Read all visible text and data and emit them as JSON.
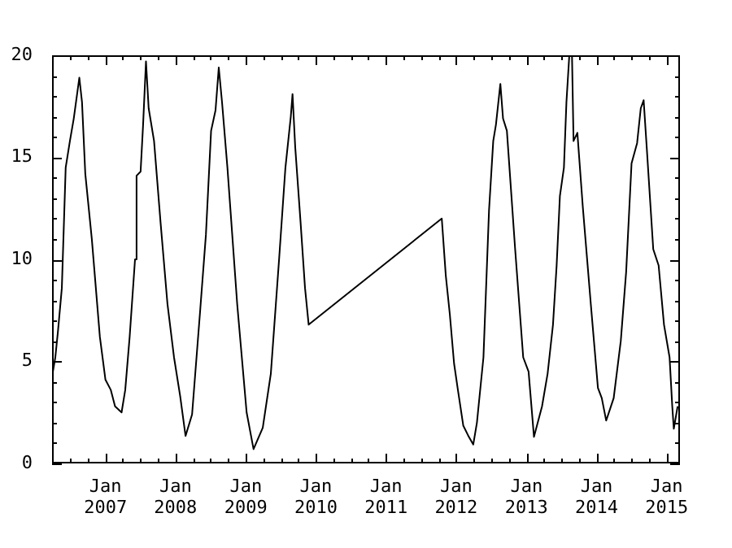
{
  "chart_data": {
    "type": "line",
    "marker": "none",
    "line_style": "solid",
    "legend": false,
    "grid": false,
    "x": [
      "2006-03-29",
      "2006-04-15",
      "2006-04-29",
      "2006-05-19",
      "2006-06-08",
      "2006-06-30",
      "2006-07-20",
      "2006-08-18",
      "2006-09-01",
      "2006-09-18",
      "2006-10-22",
      "2006-12-03",
      "2007-01-01",
      "2007-01-29",
      "2007-02-20",
      "2007-03-26",
      "2007-04-14",
      "2007-05-07",
      "2007-06-04",
      "2007-06-12",
      "2007-07-03",
      "2007-07-16",
      "2007-07-31",
      "2007-08-14",
      "2007-09-11",
      "2007-10-15",
      "2007-11-20",
      "2007-12-24",
      "2008-01-25",
      "2008-02-22",
      "2008-03-27",
      "2008-05-09",
      "2008-06-07",
      "2008-07-04",
      "2008-07-27",
      "2008-08-13",
      "2008-08-30",
      "2008-09-27",
      "2008-11-17",
      "2009-01-05",
      "2009-02-10",
      "2009-03-30",
      "2009-05-11",
      "2009-06-23",
      "2009-07-26",
      "2009-08-23",
      "2009-09-01",
      "2009-09-15",
      "2009-10-13",
      "2009-11-05",
      "2009-11-24",
      "2011-10-18",
      "2011-11-08",
      "2011-11-29",
      "2011-12-21",
      "2012-01-10",
      "2012-02-07",
      "2012-03-07",
      "2012-03-30",
      "2012-04-18",
      "2012-05-22",
      "2012-06-20",
      "2012-07-12",
      "2012-07-26",
      "2012-08-18",
      "2012-09-01",
      "2012-09-21",
      "2012-11-03",
      "2012-12-15",
      "2013-01-12",
      "2013-02-09",
      "2013-03-23",
      "2013-04-21",
      "2013-05-19",
      "2013-06-07",
      "2013-06-24",
      "2013-07-15",
      "2013-07-28",
      "2013-08-12",
      "2013-08-26",
      "2013-09-03",
      "2013-09-23",
      "2013-10-21",
      "2013-12-02",
      "2014-01-08",
      "2014-01-28",
      "2014-02-20",
      "2014-03-31",
      "2014-05-07",
      "2014-06-04",
      "2014-07-02",
      "2014-07-31",
      "2014-08-19",
      "2014-09-03",
      "2014-09-19",
      "2014-10-23",
      "2014-11-20",
      "2014-12-18",
      "2015-01-16",
      "2015-01-30",
      "2015-02-07",
      "2015-02-27"
    ],
    "series": [
      {
        "color": "#000000",
        "values": [
          4.25,
          5.2,
          6.5,
          8.6,
          14.5,
          15.8,
          16.9,
          18.9,
          17.7,
          14.2,
          11.0,
          6.2,
          4.1,
          3.6,
          2.8,
          2.5,
          3.6,
          6.2,
          10.0,
          14.1,
          14.3,
          16.6,
          19.7,
          17.4,
          15.8,
          11.8,
          7.8,
          5.2,
          3.3,
          1.35,
          2.4,
          7.6,
          11.2,
          16.3,
          17.3,
          19.4,
          17.7,
          14.5,
          7.8,
          2.5,
          0.7,
          1.75,
          4.4,
          10.0,
          14.5,
          17.0,
          18.1,
          15.5,
          11.8,
          8.6,
          6.8,
          12.0,
          9.2,
          7.3,
          4.9,
          3.6,
          1.85,
          1.3,
          0.93,
          2.0,
          5.2,
          12.4,
          15.8,
          16.6,
          18.6,
          16.9,
          16.3,
          10.5,
          5.2,
          4.5,
          1.3,
          2.8,
          4.4,
          6.8,
          9.7,
          13.1,
          14.5,
          17.7,
          20.0,
          20.0,
          15.8,
          16.2,
          12.6,
          7.8,
          3.7,
          3.2,
          2.1,
          3.2,
          6.0,
          9.4,
          14.7,
          15.7,
          17.4,
          17.8,
          15.5,
          10.5,
          9.7,
          6.8,
          5.2,
          2.8,
          1.7,
          2.8
        ]
      }
    ],
    "xlim": [
      "2006-03-29",
      "2015-03-11"
    ],
    "xticks": [
      {
        "value": "2006-04-01",
        "label": null
      },
      {
        "value": "2006-07-01",
        "label": null
      },
      {
        "value": "2006-10-01",
        "label": null
      },
      {
        "value": "2007-01-01",
        "label": "Jan 2007"
      },
      {
        "value": "2007-04-01",
        "label": null
      },
      {
        "value": "2007-07-01",
        "label": null
      },
      {
        "value": "2007-10-01",
        "label": null
      },
      {
        "value": "2008-01-01",
        "label": "Jan 2008"
      },
      {
        "value": "2008-04-01",
        "label": null
      },
      {
        "value": "2008-07-01",
        "label": null
      },
      {
        "value": "2008-10-01",
        "label": null
      },
      {
        "value": "2009-01-01",
        "label": "Jan 2009"
      },
      {
        "value": "2009-04-01",
        "label": null
      },
      {
        "value": "2009-07-01",
        "label": null
      },
      {
        "value": "2009-10-01",
        "label": null
      },
      {
        "value": "2010-01-01",
        "label": "Jan 2010"
      },
      {
        "value": "2010-04-01",
        "label": null
      },
      {
        "value": "2010-07-01",
        "label": null
      },
      {
        "value": "2010-10-01",
        "label": null
      },
      {
        "value": "2011-01-01",
        "label": "Jan 2011"
      },
      {
        "value": "2011-04-01",
        "label": null
      },
      {
        "value": "2011-07-01",
        "label": null
      },
      {
        "value": "2011-10-01",
        "label": null
      },
      {
        "value": "2012-01-01",
        "label": "Jan 2012"
      },
      {
        "value": "2012-04-01",
        "label": null
      },
      {
        "value": "2012-07-01",
        "label": null
      },
      {
        "value": "2012-10-01",
        "label": null
      },
      {
        "value": "2013-01-01",
        "label": "Jan 2013"
      },
      {
        "value": "2013-04-01",
        "label": null
      },
      {
        "value": "2013-07-01",
        "label": null
      },
      {
        "value": "2013-10-01",
        "label": null
      },
      {
        "value": "2014-01-01",
        "label": "Jan 2014"
      },
      {
        "value": "2014-04-01",
        "label": null
      },
      {
        "value": "2014-07-01",
        "label": null
      },
      {
        "value": "2014-10-01",
        "label": null
      },
      {
        "value": "2015-01-01",
        "label": "Jan 2015"
      }
    ],
    "ylim": [
      0,
      20
    ],
    "yticks": [
      0,
      {
        "value": 1,
        "label": null
      },
      {
        "value": 2,
        "label": null
      },
      {
        "value": 3,
        "label": null
      },
      {
        "value": 4,
        "label": null
      },
      5,
      {
        "value": 6,
        "label": null
      },
      {
        "value": 7,
        "label": null
      },
      {
        "value": 8,
        "label": null
      },
      {
        "value": 9,
        "label": null
      },
      10,
      {
        "value": 11,
        "label": null
      },
      {
        "value": 12,
        "label": null
      },
      {
        "value": 13,
        "label": null
      },
      {
        "value": 14,
        "label": null
      },
      15,
      {
        "value": 16,
        "label": null
      },
      {
        "value": 17,
        "label": null
      },
      {
        "value": 18,
        "label": null
      },
      {
        "value": 19,
        "label": null
      },
      20
    ]
  }
}
